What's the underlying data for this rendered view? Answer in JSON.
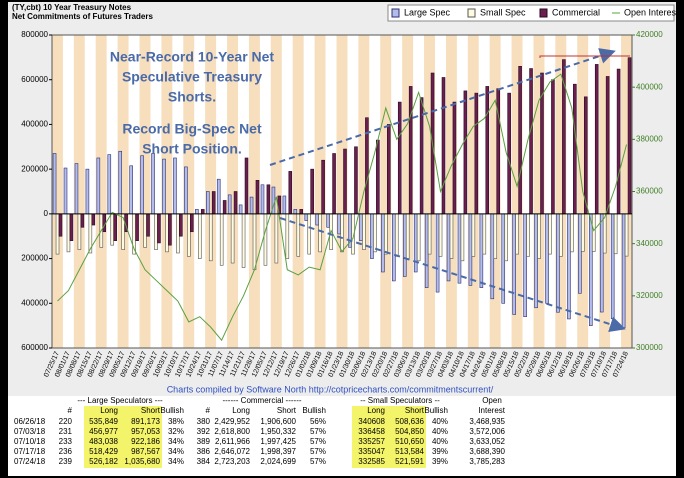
{
  "chart_data": {
    "type": "bar",
    "title": "(TY,cbt) 10 Year Treasury Notes",
    "subtitle": "Net Commitments of Futures Traders",
    "annotations": [
      "Near-Record 10-Year Net",
      "Speculative Treasury",
      "Shorts.",
      "Record Big-Spec Net",
      "Short Position."
    ],
    "credit": "Charts compiled by Software North  http://cotpricecharts.com/commitmentscurrent/",
    "legend": "upper right",
    "categories": [
      "07/25/17",
      "08/01/17",
      "08/08/17",
      "08/15/17",
      "08/22/17",
      "08/29/17",
      "09/05/17",
      "09/12/17",
      "09/19/17",
      "09/26/17",
      "10/03/17",
      "10/10/17",
      "10/17/17",
      "10/24/17",
      "10/31/17",
      "11/07/17",
      "11/14/17",
      "11/21/17",
      "11/28/17",
      "12/05/17",
      "12/12/17",
      "12/19/17",
      "12/26/17",
      "01/02/18",
      "01/09/18",
      "01/16/18",
      "01/23/18",
      "01/30/18",
      "02/06/18",
      "02/13/18",
      "02/20/18",
      "02/27/18",
      "03/06/18",
      "03/13/18",
      "03/20/18",
      "03/27/18",
      "04/03/18",
      "04/10/18",
      "04/17/18",
      "04/24/18",
      "05/01/18",
      "05/08/18",
      "05/15/18",
      "05/22/18",
      "05/29/18",
      "06/05/18",
      "06/12/18",
      "06/19/18",
      "06/26/18",
      "07/03/18",
      "07/10/18",
      "07/17/18",
      "07/24/18"
    ],
    "series": [
      {
        "name": "Large Spec",
        "color": "#b4bcec",
        "values": [
          270000,
          205000,
          225000,
          200000,
          250000,
          265000,
          280000,
          215000,
          260000,
          270000,
          245000,
          250000,
          210000,
          20000,
          100000,
          155000,
          85000,
          40000,
          75000,
          130000,
          120000,
          80000,
          20000,
          -30000,
          -50000,
          -60000,
          -90000,
          -150000,
          -120000,
          -200000,
          -260000,
          -300000,
          -280000,
          -260000,
          -330000,
          -350000,
          -300000,
          -310000,
          -320000,
          -330000,
          -380000,
          -400000,
          -450000,
          -460000,
          -420000,
          -400000,
          -440000,
          -470000,
          -355324,
          -500076,
          -439148,
          -469138,
          -509498
        ]
      },
      {
        "name": "Small Spec",
        "color": "#fffbe0",
        "values": [
          -180000,
          -170000,
          -160000,
          -175000,
          -150000,
          -140000,
          -160000,
          -180000,
          -150000,
          -160000,
          -170000,
          -175000,
          -190000,
          -200000,
          -210000,
          -230000,
          -220000,
          -240000,
          -250000,
          -230000,
          -220000,
          -200000,
          -190000,
          -180000,
          -170000,
          -160000,
          -170000,
          -180000,
          -160000,
          -170000,
          -180000,
          -190000,
          -200000,
          -210000,
          -180000,
          -190000,
          -200000,
          -210000,
          -190000,
          -180000,
          -200000,
          -210000,
          -180000,
          -190000,
          -200000,
          -180000,
          -190000,
          -170000,
          -168028,
          -168392,
          -175393,
          -178537,
          -189006
        ]
      },
      {
        "name": "Commercial",
        "color": "#6b1f4f",
        "values": [
          -100000,
          -120000,
          -60000,
          -50000,
          -80000,
          -120000,
          -80000,
          -120000,
          -100000,
          -130000,
          -140000,
          -100000,
          -80000,
          20000,
          100000,
          60000,
          100000,
          250000,
          150000,
          130000,
          80000,
          190000,
          20000,
          200000,
          240000,
          270000,
          290000,
          300000,
          430000,
          330000,
          400000,
          500000,
          570000,
          520000,
          630000,
          610000,
          500000,
          550000,
          540000,
          570000,
          560000,
          540000,
          660000,
          650000,
          630000,
          600000,
          690000,
          580000,
          523352,
          668468,
          614541,
          647675,
          698504
        ]
      },
      {
        "name": "Open Interest",
        "color": "#5aa040",
        "type": "line",
        "axis": "y2",
        "values": [
          318000,
          322000,
          330000,
          338000,
          345000,
          352000,
          350000,
          338000,
          330000,
          326000,
          322000,
          318000,
          310000,
          312000,
          308000,
          303000,
          312000,
          320000,
          330000,
          345000,
          358000,
          330000,
          328000,
          331000,
          330000,
          345000,
          337000,
          342000,
          360000,
          375000,
          392000,
          380000,
          386000,
          398000,
          385000,
          360000,
          370000,
          378000,
          385000,
          388000,
          395000,
          375000,
          362000,
          380000,
          395000,
          402000,
          405000,
          392000,
          360000,
          345000,
          350000,
          362000,
          378000
        ]
      }
    ],
    "ylim": [
      -600000,
      800000
    ],
    "yticks": [
      {
        "value": -600000,
        "label": "600000"
      },
      {
        "value": -400000,
        "label": "400000"
      },
      {
        "value": -200000,
        "label": "200000"
      },
      0,
      200000,
      400000,
      600000,
      800000
    ],
    "y2lim": [
      300000,
      420000
    ],
    "y2ticks": [
      300000,
      320000,
      340000,
      360000,
      380000,
      400000,
      420000
    ],
    "grid": false
  },
  "table": {
    "header": [
      "--- Large Speculators ---",
      "------ Commercial ------",
      "-- Small Speculators --",
      "Open"
    ],
    "columns": [
      "#",
      "Long",
      "Short",
      "Bullish",
      "#",
      "Long",
      "Short",
      "Bullish",
      "Long",
      "Short",
      "Bullish",
      "Interest"
    ],
    "rows": [
      [
        "06/26/18",
        "220",
        "535,849",
        "891,173",
        "38%",
        "380",
        "2,429,952",
        "1,906,600",
        "56%",
        "340608",
        "508,636",
        "40%",
        "3,468,935"
      ],
      [
        "07/03/18",
        "231",
        "456,977",
        "957,053",
        "32%",
        "392",
        "2,618,800",
        "1,950,332",
        "57%",
        "336458",
        "504,850",
        "40%",
        "3,572,006"
      ],
      [
        "07/10/18",
        "233",
        "483,038",
        "922,186",
        "34%",
        "389",
        "2,611,966",
        "1,997,425",
        "57%",
        "335257",
        "510,650",
        "40%",
        "3,633,052"
      ],
      [
        "07/17/18",
        "236",
        "518,429",
        "987,567",
        "34%",
        "386",
        "2,646,072",
        "1,998,397",
        "57%",
        "335047",
        "513,584",
        "39%",
        "3,688,390"
      ],
      [
        "07/24/18",
        "239",
        "526,182",
        "1,035,680",
        "34%",
        "384",
        "2,723,203",
        "2,024,699",
        "57%",
        "332585",
        "521,591",
        "39%",
        "3,785,283"
      ]
    ]
  }
}
